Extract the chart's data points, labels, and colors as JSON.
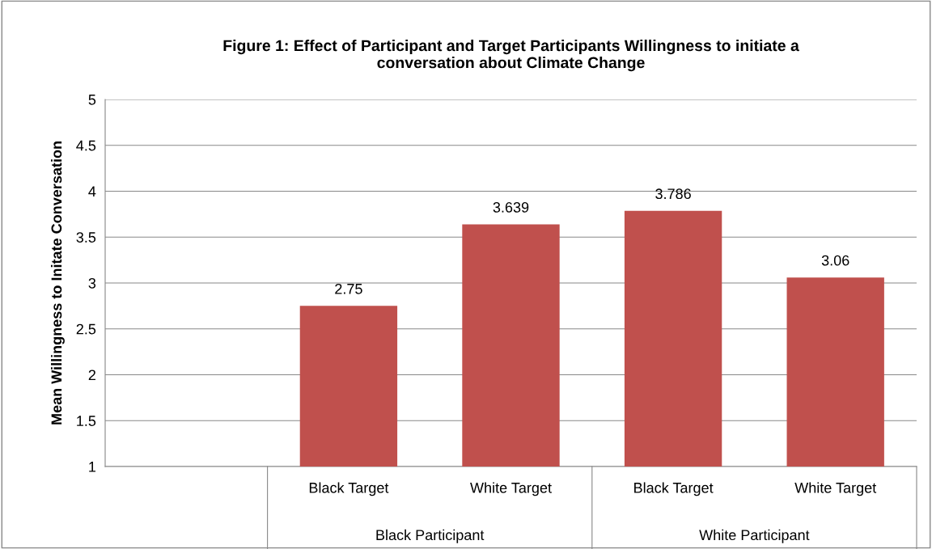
{
  "chart_data": {
    "type": "bar",
    "title": "Figure 1: Effect of Participant and Target Participants Willingness to initiate a\nconversation about Climate Change",
    "ylabel": "Mean Willingness to Initate Conversation",
    "categories": [
      null,
      "Black Target",
      "White Target",
      "Black Target",
      "White Target"
    ],
    "values": [
      null,
      2.75,
      3.639,
      3.786,
      3.06
    ],
    "color": "#c0504d",
    "ylim": [
      1,
      5
    ],
    "yticks": [
      1,
      1.5,
      2,
      2.5,
      3,
      3.5,
      4,
      4.5,
      5
    ],
    "grid": "y",
    "data_labels": true,
    "annotations": [
      "Black Participant",
      "White Participant"
    ]
  }
}
